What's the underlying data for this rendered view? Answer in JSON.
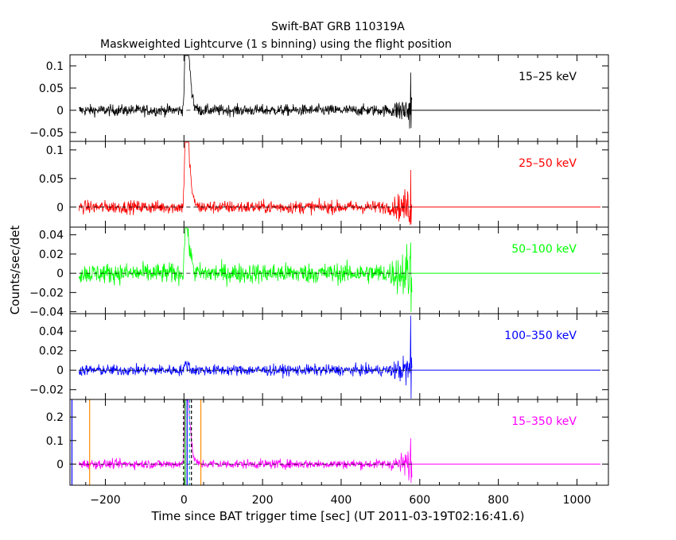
{
  "chart_data": {
    "type": "line",
    "title": "Swift-BAT GRB 110319A",
    "subtitle": "Maskweighted Lightcurve (1 s binning) using the flight position",
    "xlabel": "Time since BAT trigger time [sec] (UT 2011-03-19T02:16:41.6)",
    "ylabel": "Counts/sec/det",
    "xlim": [
      -290,
      1080
    ],
    "x_ticks": [
      -200,
      0,
      200,
      400,
      600,
      800,
      1000
    ],
    "x_tick_labels": [
      "−200",
      "0",
      "200",
      "400",
      "600",
      "800",
      "1000"
    ],
    "data_end": 580,
    "grid": false,
    "panels": [
      {
        "band": "15–25 keV",
        "color": "#000000",
        "ylim": [
          -0.07,
          0.125
        ],
        "y_ticks": [
          -0.05,
          0,
          0.05,
          0.1
        ],
        "y_tick_labels": [
          "−0.05",
          "0",
          "0.05",
          "0.1"
        ],
        "noise": 0.009,
        "peaks": [
          [
            3,
            0.11
          ],
          [
            7,
            0.124
          ],
          [
            11,
            0.114
          ],
          [
            16,
            0.08
          ],
          [
            22,
            0.035
          ],
          [
            30,
            0.01
          ]
        ],
        "end_spike": [
          0.085,
          -0.04
        ]
      },
      {
        "band": "25–50 keV",
        "color": "#ff0000",
        "ylim": [
          -0.035,
          0.115
        ],
        "y_ticks": [
          0,
          0.05,
          0.1
        ],
        "y_tick_labels": [
          "0",
          "0.05",
          "0.1"
        ],
        "noise": 0.008,
        "peaks": [
          [
            3,
            0.1
          ],
          [
            7,
            0.108
          ],
          [
            11,
            0.1
          ],
          [
            16,
            0.06
          ],
          [
            22,
            0.025
          ],
          [
            30,
            0.008
          ]
        ],
        "end_spike": [
          0.065,
          -0.03
        ]
      },
      {
        "band": "50–100 keV",
        "color": "#00ff00",
        "ylim": [
          -0.042,
          0.048
        ],
        "y_ticks": [
          -0.04,
          -0.02,
          0,
          0.02,
          0.04
        ],
        "y_tick_labels": [
          "−0.04",
          "−0.02",
          "0",
          "0.02",
          "0.04"
        ],
        "noise": 0.0075,
        "peaks": [
          [
            3,
            0.04
          ],
          [
            7,
            0.036
          ],
          [
            11,
            0.03
          ],
          [
            16,
            0.02
          ],
          [
            22,
            0.012
          ]
        ],
        "end_spike": [
          0.032,
          -0.04
        ]
      },
      {
        "band": "100–350 keV",
        "color": "#0000ff",
        "ylim": [
          -0.03,
          0.058
        ],
        "y_ticks": [
          -0.02,
          0,
          0.02,
          0.04
        ],
        "y_tick_labels": [
          "−0.02",
          "0",
          "0.02",
          "0.04"
        ],
        "noise": 0.004,
        "peaks": [
          [
            5,
            0.008
          ],
          [
            12,
            0.006
          ]
        ],
        "end_spike": [
          0.056,
          -0.03
        ]
      },
      {
        "band": "15–350 keV",
        "color": "#ff00ff",
        "ylim": [
          -0.09,
          0.275
        ],
        "y_ticks": [
          0,
          0.1,
          0.2
        ],
        "y_tick_labels": [
          "0",
          "0.1",
          "0.2"
        ],
        "noise": 0.014,
        "peaks": [
          [
            3,
            0.24
          ],
          [
            7,
            0.26
          ],
          [
            11,
            0.23
          ],
          [
            16,
            0.15
          ],
          [
            22,
            0.06
          ],
          [
            30,
            0.02
          ]
        ],
        "end_spike": [
          0.11,
          -0.08
        ],
        "markers": [
          {
            "x": -285,
            "color": "#0000ff"
          },
          {
            "x": -240,
            "color": "#ff8c00"
          },
          {
            "x": -1,
            "color": "#000000",
            "dashed": true
          },
          {
            "x": 3,
            "color": "#00b000"
          },
          {
            "x": 8,
            "color": "#0000ff"
          },
          {
            "x": 14,
            "color": "#00b0b0",
            "dashed": true
          },
          {
            "x": 19,
            "color": "#000000",
            "dashed": true
          },
          {
            "x": 43,
            "color": "#ff8c00"
          }
        ]
      }
    ]
  }
}
